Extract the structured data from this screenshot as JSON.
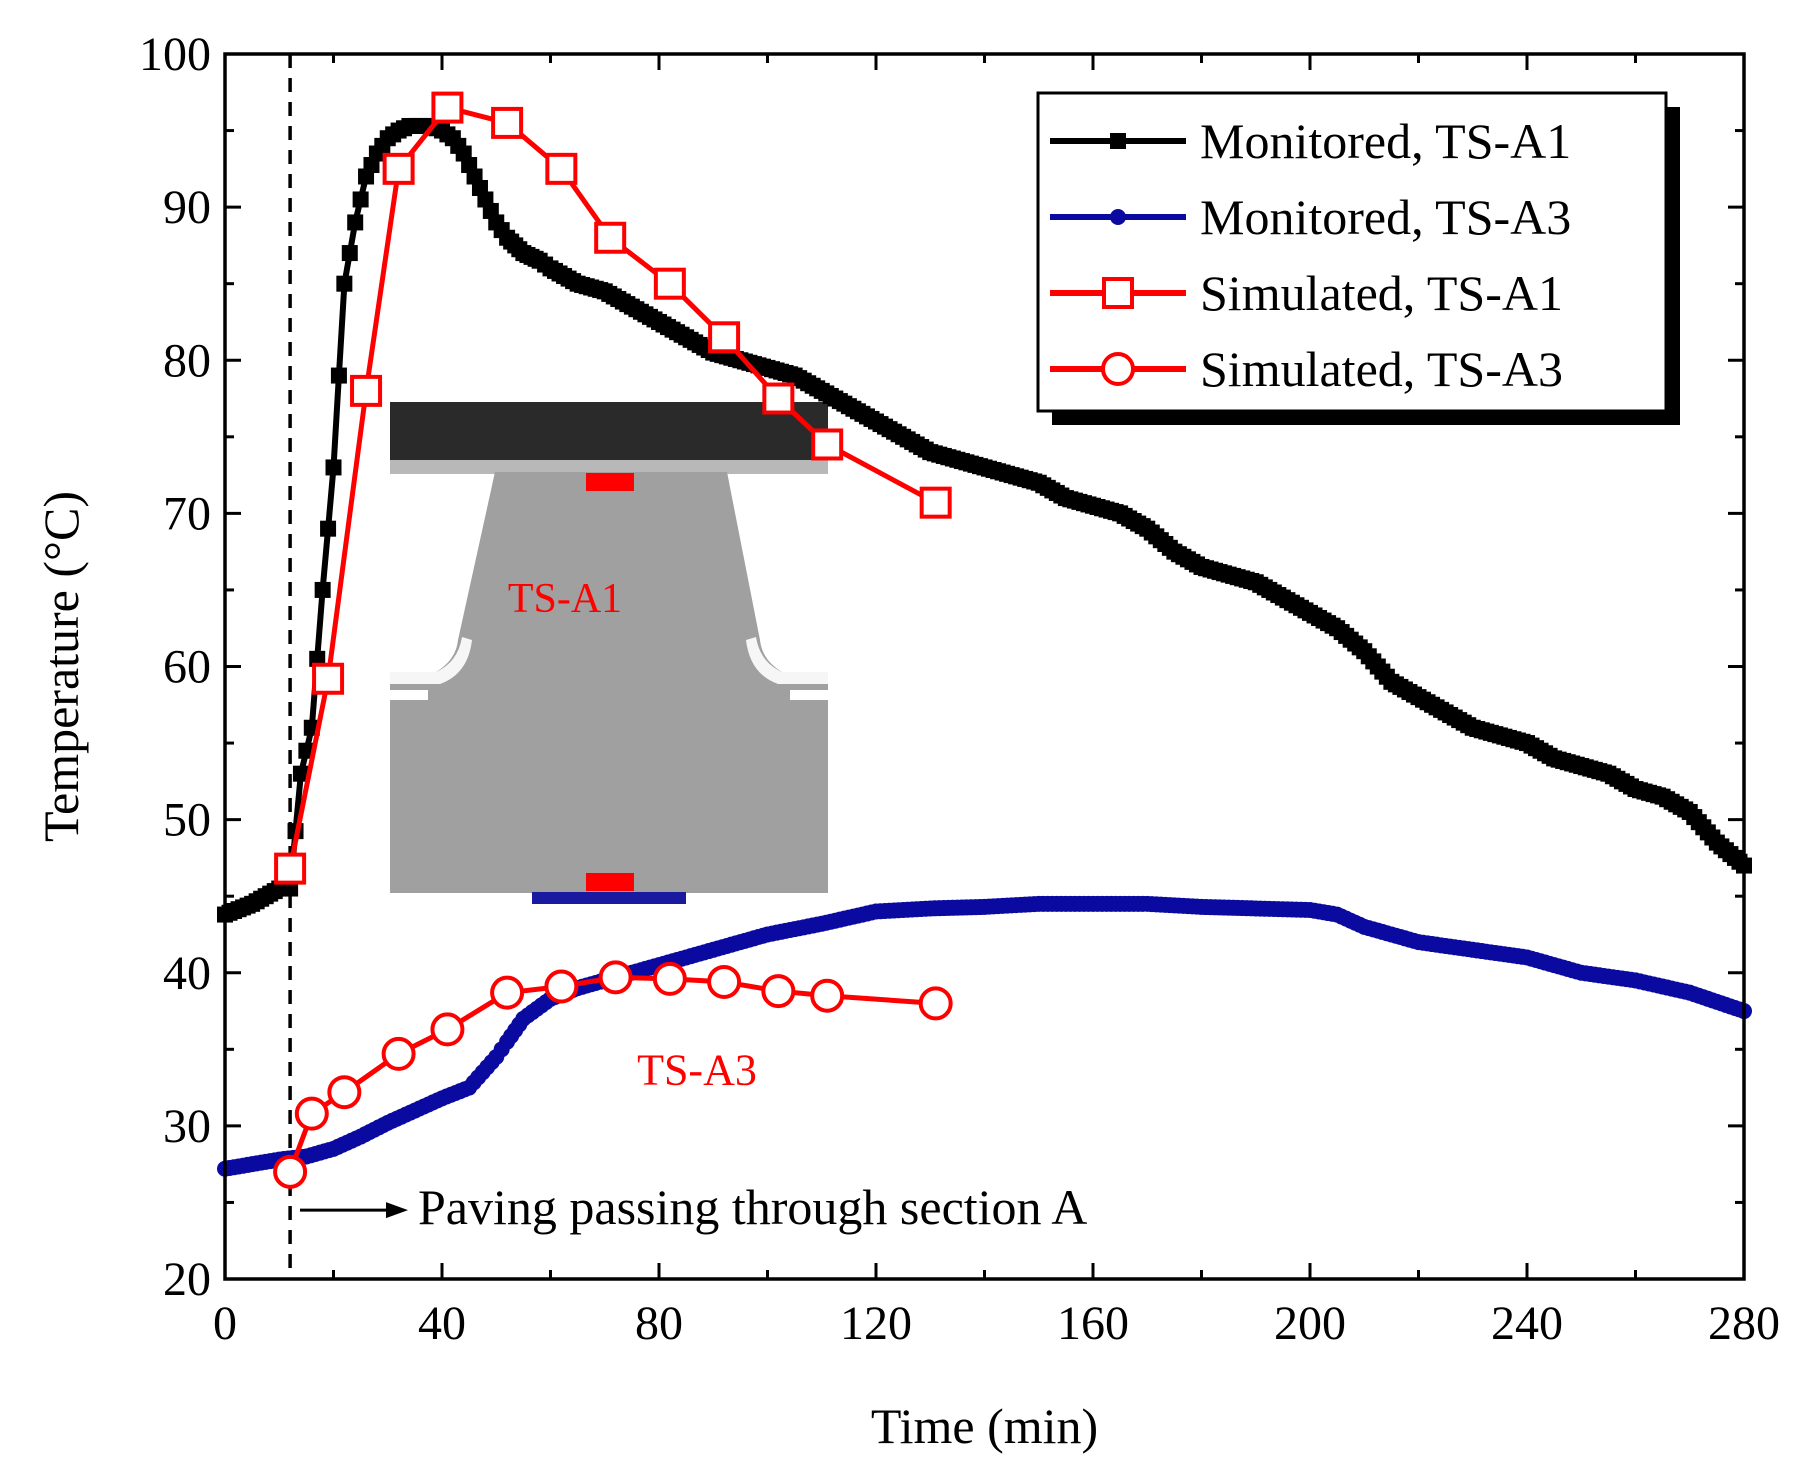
{
  "chart_data": {
    "type": "line",
    "title": "",
    "xlabel": "Time (min)",
    "ylabel": "Temperature (°C)",
    "xlim": [
      0,
      280
    ],
    "ylim": [
      20,
      100
    ],
    "xticks": [
      0,
      40,
      80,
      120,
      160,
      200,
      240,
      280
    ],
    "yticks": [
      20,
      30,
      40,
      50,
      60,
      70,
      80,
      90,
      100
    ],
    "legend_position": "top-right",
    "series": [
      {
        "name": "Monitored, TS-A1",
        "color": "#000000",
        "marker": "square-filled",
        "x": [
          0,
          5,
          10,
          12,
          14,
          16,
          18,
          20,
          22,
          24,
          26,
          28,
          30,
          32,
          34,
          36,
          38,
          40,
          42,
          44,
          46,
          48,
          50,
          52,
          55,
          58,
          60,
          65,
          70,
          75,
          80,
          85,
          90,
          95,
          100,
          105,
          110,
          115,
          120,
          125,
          130,
          135,
          140,
          145,
          150,
          155,
          160,
          165,
          170,
          175,
          180,
          185,
          190,
          195,
          200,
          205,
          210,
          215,
          220,
          225,
          230,
          235,
          240,
          245,
          250,
          255,
          260,
          265,
          270,
          275,
          280
        ],
        "y": [
          43.8,
          44.5,
          45.5,
          45.5,
          53,
          56,
          65,
          73,
          85,
          89,
          92,
          93.5,
          94.5,
          95,
          95.3,
          95.3,
          95.3,
          95,
          94.5,
          93.5,
          92,
          90.5,
          89,
          88,
          87,
          86.5,
          86,
          85,
          84.5,
          83.5,
          82.5,
          81.5,
          80.5,
          80,
          79.5,
          79,
          78,
          77,
          76,
          75,
          74,
          73.5,
          73,
          72.5,
          72,
          71,
          70.5,
          70,
          69,
          67.5,
          66.5,
          66,
          65.5,
          64.5,
          63.5,
          62.5,
          61,
          59,
          58,
          57,
          56,
          55.5,
          55,
          54,
          53.5,
          53,
          52,
          51.5,
          50.5,
          48.5,
          47
        ]
      },
      {
        "name": "Monitored, TS-A3",
        "color": "#0a0aa0",
        "marker": "circle-filled",
        "x": [
          0,
          5,
          10,
          15,
          20,
          25,
          30,
          35,
          40,
          45,
          50,
          52,
          55,
          60,
          65,
          70,
          75,
          80,
          85,
          90,
          95,
          100,
          110,
          120,
          130,
          140,
          150,
          160,
          170,
          180,
          190,
          200,
          205,
          210,
          220,
          230,
          240,
          250,
          260,
          270,
          280
        ],
        "y": [
          27.2,
          27.5,
          27.8,
          28,
          28.5,
          29.3,
          30.2,
          31,
          31.8,
          32.5,
          34.5,
          35.5,
          37,
          38.3,
          39,
          39.5,
          40,
          40.5,
          41,
          41.5,
          42,
          42.5,
          43.2,
          44,
          44.2,
          44.3,
          44.5,
          44.5,
          44.5,
          44.3,
          44.2,
          44.1,
          43.8,
          43,
          42,
          41.5,
          41,
          40,
          39.5,
          38.7,
          37.5
        ]
      },
      {
        "name": "Simulated, TS-A1",
        "color": "#ff0000",
        "marker": "square-open",
        "x": [
          12,
          19,
          26,
          32,
          41,
          52,
          62,
          71,
          82,
          92,
          102,
          111,
          131
        ],
        "y": [
          46.8,
          59.2,
          78,
          92.5,
          96.5,
          95.5,
          92.5,
          88,
          85,
          81.5,
          77.5,
          74.5,
          70.7
        ]
      },
      {
        "name": "Simulated, TS-A3",
        "color": "#ff0000",
        "marker": "circle-open",
        "x": [
          12,
          16,
          22,
          32,
          41,
          52,
          62,
          72,
          82,
          92,
          102,
          111,
          131
        ],
        "y": [
          27,
          30.8,
          32.2,
          34.7,
          36.3,
          38.7,
          39.1,
          39.7,
          39.6,
          39.4,
          38.8,
          38.5,
          38
        ]
      }
    ],
    "annotations": [
      {
        "text": "Paving passing through section A",
        "x": 14,
        "y": 24.5
      },
      {
        "text": "TS-A3",
        "x": 87,
        "y": 33.5
      }
    ],
    "reference_line": {
      "x": 12,
      "style": "dashed",
      "color": "#000000"
    }
  },
  "inset": {
    "label_top": "TS-A1",
    "colors": {
      "deck": "#2a2a2a",
      "body": "#a0a0a0",
      "sensor": "#ff0000",
      "base": "#1a1aa0"
    }
  }
}
